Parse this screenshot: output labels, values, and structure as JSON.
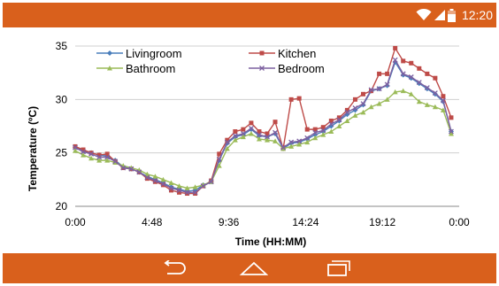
{
  "status_bar": {
    "time": "12:20",
    "icons": [
      "wifi-icon",
      "cell-signal-icon",
      "battery-icon"
    ],
    "background": "#d9601c"
  },
  "nav_bar": {
    "buttons": [
      "back-icon",
      "home-icon",
      "recent-apps-icon"
    ],
    "background": "#d9601c"
  },
  "chart_data": {
    "type": "line",
    "xlabel": "Time (HH:MM)",
    "ylabel": "Temperature (ºC)",
    "ylim": [
      20,
      35
    ],
    "xlim": [
      0,
      24
    ],
    "yticks": [
      20,
      25,
      30,
      35
    ],
    "xticks": [
      {
        "value": 0,
        "label": "0:00"
      },
      {
        "value": 4.8,
        "label": "4:48"
      },
      {
        "value": 9.6,
        "label": "9:36"
      },
      {
        "value": 14.4,
        "label": "14:24"
      },
      {
        "value": 19.2,
        "label": "19:12"
      },
      {
        "value": 24,
        "label": "0:00"
      }
    ],
    "grid": "horizontal",
    "legend_position": "top-left",
    "x": [
      0,
      0.5,
      1,
      1.5,
      2,
      2.5,
      3,
      3.5,
      4,
      4.5,
      5,
      5.5,
      6,
      6.5,
      7,
      7.5,
      8,
      8.5,
      9,
      9.5,
      10,
      10.5,
      11,
      11.5,
      12,
      12.5,
      13,
      13.5,
      14,
      14.5,
      15,
      15.5,
      16,
      16.5,
      17,
      17.5,
      18,
      18.5,
      19,
      19.5,
      20,
      20.5,
      21,
      21.5,
      22,
      22.5,
      23,
      23.5
    ],
    "series": [
      {
        "name": "Livingroom",
        "color": "#4a7ebb",
        "marker": "diamond",
        "values": [
          25.5,
          25.2,
          25.0,
          24.8,
          24.7,
          24.3,
          23.7,
          23.5,
          23.2,
          22.8,
          22.5,
          22.2,
          21.8,
          21.6,
          21.4,
          21.5,
          22.0,
          22.3,
          24.3,
          25.9,
          26.5,
          26.7,
          27.2,
          26.6,
          26.5,
          26.8,
          25.4,
          25.9,
          26.0,
          26.3,
          26.7,
          27.0,
          27.5,
          28.0,
          28.6,
          29.0,
          29.5,
          30.8,
          31.0,
          31.3,
          33.5,
          32.3,
          32.0,
          31.5,
          31.0,
          30.5,
          29.8,
          27.0
        ]
      },
      {
        "name": "Kitchen",
        "color": "#be4b48",
        "marker": "square",
        "values": [
          25.6,
          25.3,
          25.0,
          24.8,
          24.9,
          24.2,
          23.6,
          23.5,
          23.2,
          22.6,
          22.3,
          22.0,
          21.5,
          21.3,
          21.2,
          21.2,
          21.9,
          22.4,
          24.9,
          26.2,
          27.0,
          27.2,
          27.8,
          27.0,
          26.8,
          27.9,
          25.4,
          30.0,
          30.1,
          27.2,
          27.2,
          27.4,
          28.0,
          28.3,
          29.0,
          30.0,
          30.5,
          30.8,
          32.4,
          32.4,
          34.8,
          33.6,
          33.4,
          32.9,
          32.4,
          32.0,
          30.3,
          28.3
        ]
      },
      {
        "name": "Bathroom",
        "color": "#9bbb59",
        "marker": "triangle",
        "values": [
          25.2,
          24.8,
          24.5,
          24.3,
          24.3,
          24.1,
          23.8,
          23.6,
          23.4,
          23.0,
          22.8,
          22.5,
          22.2,
          21.9,
          21.7,
          21.8,
          22.0,
          22.3,
          23.8,
          25.4,
          26.2,
          26.5,
          26.8,
          26.3,
          26.2,
          26.1,
          25.4,
          25.6,
          25.8,
          26.0,
          26.4,
          26.7,
          27.0,
          27.5,
          28.0,
          28.5,
          28.8,
          29.3,
          29.6,
          30.0,
          30.7,
          30.8,
          30.5,
          29.8,
          29.5,
          29.3,
          29.0,
          26.8
        ]
      },
      {
        "name": "Bedroom",
        "color": "#7d60a0",
        "marker": "x",
        "values": [
          25.5,
          25.1,
          24.9,
          24.6,
          24.6,
          24.2,
          23.6,
          23.5,
          23.2,
          22.7,
          22.4,
          22.1,
          21.7,
          21.5,
          21.3,
          21.3,
          21.9,
          22.3,
          24.4,
          26.0,
          26.6,
          26.8,
          27.3,
          26.7,
          26.5,
          26.9,
          25.5,
          26.0,
          26.1,
          26.4,
          26.9,
          27.1,
          27.7,
          28.1,
          28.8,
          29.2,
          29.6,
          30.9,
          31.0,
          31.4,
          33.7,
          32.4,
          32.1,
          31.6,
          31.1,
          30.6,
          29.9,
          27.0
        ]
      }
    ]
  }
}
